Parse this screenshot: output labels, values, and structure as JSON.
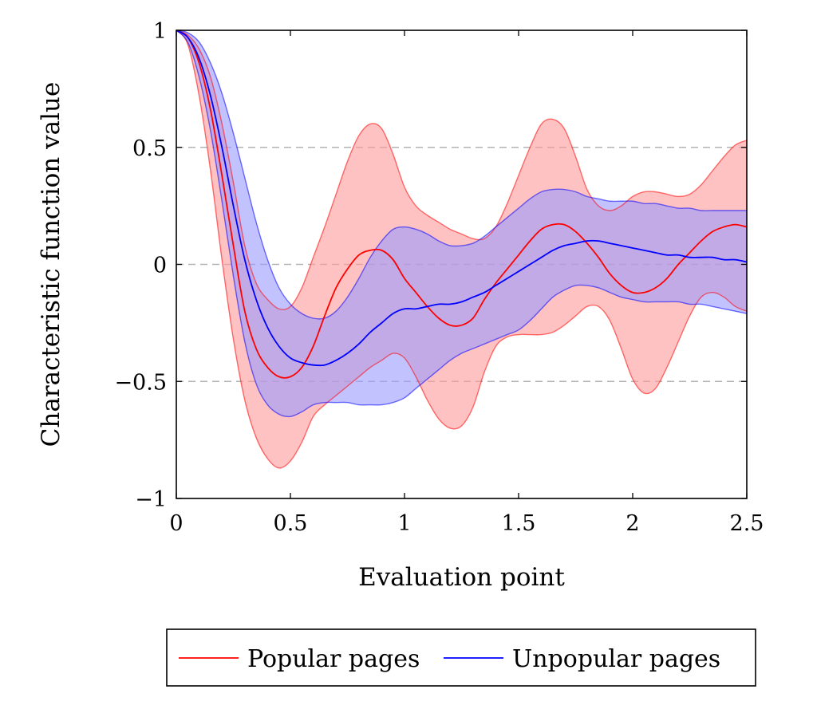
{
  "chart_data": {
    "type": "line",
    "title": "",
    "xlabel": "Evaluation point",
    "ylabel": "Characteristic function value",
    "xlim": [
      0,
      2.5
    ],
    "ylim": [
      -1,
      1
    ],
    "x_ticks": [
      "0",
      "0.5",
      "1",
      "1.5",
      "2",
      "2.5"
    ],
    "x_tick_values": [
      0,
      0.5,
      1,
      1.5,
      2,
      2.5
    ],
    "y_ticks": [
      "1",
      "0.5",
      "0",
      "−0.5",
      "−1"
    ],
    "y_tick_values": [
      1,
      0.5,
      0,
      -0.5,
      -1
    ],
    "grid": "horizontal dashed at 0.5, 0, -0.5",
    "legend": {
      "placement": "bottom",
      "entries": [
        "Popular pages",
        "Unpopular pages"
      ]
    },
    "series": [
      {
        "name": "Popular pages",
        "color": "#ff0000",
        "band_color": "#ff9999",
        "x": [
          0,
          0.05,
          0.1,
          0.15,
          0.2,
          0.25,
          0.3,
          0.35,
          0.4,
          0.45,
          0.5,
          0.55,
          0.6,
          0.65,
          0.7,
          0.75,
          0.8,
          0.85,
          0.9,
          0.95,
          1.0,
          1.05,
          1.1,
          1.15,
          1.2,
          1.25,
          1.3,
          1.35,
          1.4,
          1.45,
          1.5,
          1.55,
          1.6,
          1.65,
          1.7,
          1.75,
          1.8,
          1.85,
          1.9,
          1.95,
          2.0,
          2.05,
          2.1,
          2.15,
          2.2,
          2.25,
          2.3,
          2.35,
          2.4,
          2.45,
          2.5
        ],
        "mean": [
          1.0,
          0.97,
          0.86,
          0.66,
          0.38,
          0.08,
          -0.2,
          -0.36,
          -0.44,
          -0.48,
          -0.48,
          -0.44,
          -0.35,
          -0.22,
          -0.1,
          -0.02,
          0.04,
          0.06,
          0.06,
          0.02,
          -0.06,
          -0.12,
          -0.18,
          -0.23,
          -0.26,
          -0.26,
          -0.23,
          -0.15,
          -0.08,
          -0.02,
          0.04,
          0.1,
          0.15,
          0.17,
          0.17,
          0.14,
          0.09,
          0.03,
          -0.04,
          -0.09,
          -0.12,
          -0.12,
          -0.1,
          -0.06,
          0.0,
          0.05,
          0.1,
          0.14,
          0.16,
          0.17,
          0.16
        ],
        "upper": [
          1.0,
          0.98,
          0.92,
          0.8,
          0.6,
          0.35,
          0.08,
          -0.08,
          -0.15,
          -0.19,
          -0.18,
          -0.1,
          0.03,
          0.16,
          0.3,
          0.44,
          0.55,
          0.6,
          0.58,
          0.47,
          0.33,
          0.25,
          0.21,
          0.18,
          0.15,
          0.13,
          0.11,
          0.11,
          0.16,
          0.26,
          0.38,
          0.5,
          0.6,
          0.62,
          0.58,
          0.46,
          0.32,
          0.25,
          0.23,
          0.25,
          0.29,
          0.31,
          0.31,
          0.3,
          0.29,
          0.3,
          0.34,
          0.4,
          0.46,
          0.51,
          0.53
        ],
        "lower": [
          1.0,
          0.94,
          0.72,
          0.4,
          0.02,
          -0.32,
          -0.58,
          -0.74,
          -0.83,
          -0.87,
          -0.84,
          -0.76,
          -0.65,
          -0.6,
          -0.56,
          -0.52,
          -0.48,
          -0.44,
          -0.41,
          -0.38,
          -0.4,
          -0.48,
          -0.58,
          -0.66,
          -0.7,
          -0.69,
          -0.61,
          -0.46,
          -0.35,
          -0.31,
          -0.3,
          -0.3,
          -0.3,
          -0.29,
          -0.26,
          -0.22,
          -0.18,
          -0.18,
          -0.24,
          -0.36,
          -0.49,
          -0.55,
          -0.53,
          -0.44,
          -0.33,
          -0.22,
          -0.14,
          -0.12,
          -0.14,
          -0.18,
          -0.2
        ]
      },
      {
        "name": "Unpopular pages",
        "color": "#0000ff",
        "band_color": "#9999ff",
        "x": [
          0,
          0.05,
          0.1,
          0.15,
          0.2,
          0.25,
          0.3,
          0.35,
          0.4,
          0.45,
          0.5,
          0.55,
          0.6,
          0.65,
          0.7,
          0.75,
          0.8,
          0.85,
          0.9,
          0.95,
          1.0,
          1.05,
          1.1,
          1.15,
          1.2,
          1.25,
          1.3,
          1.35,
          1.4,
          1.45,
          1.5,
          1.55,
          1.6,
          1.65,
          1.7,
          1.75,
          1.8,
          1.85,
          1.9,
          1.95,
          2.0,
          2.05,
          2.1,
          2.15,
          2.2,
          2.25,
          2.3,
          2.35,
          2.4,
          2.45,
          2.5
        ],
        "mean": [
          1.0,
          0.97,
          0.88,
          0.72,
          0.5,
          0.25,
          0.02,
          -0.15,
          -0.27,
          -0.35,
          -0.4,
          -0.42,
          -0.43,
          -0.43,
          -0.41,
          -0.38,
          -0.34,
          -0.29,
          -0.25,
          -0.21,
          -0.19,
          -0.19,
          -0.18,
          -0.17,
          -0.17,
          -0.16,
          -0.14,
          -0.12,
          -0.09,
          -0.06,
          -0.03,
          0.0,
          0.03,
          0.06,
          0.08,
          0.09,
          0.1,
          0.1,
          0.09,
          0.08,
          0.07,
          0.06,
          0.05,
          0.04,
          0.04,
          0.03,
          0.03,
          0.03,
          0.02,
          0.02,
          0.01
        ],
        "upper": [
          1.0,
          0.99,
          0.95,
          0.86,
          0.73,
          0.56,
          0.37,
          0.18,
          0.02,
          -0.1,
          -0.17,
          -0.21,
          -0.23,
          -0.23,
          -0.2,
          -0.14,
          -0.06,
          0.03,
          0.1,
          0.15,
          0.16,
          0.15,
          0.13,
          0.1,
          0.08,
          0.08,
          0.09,
          0.12,
          0.16,
          0.2,
          0.24,
          0.28,
          0.31,
          0.32,
          0.32,
          0.31,
          0.29,
          0.28,
          0.27,
          0.27,
          0.27,
          0.26,
          0.26,
          0.25,
          0.24,
          0.24,
          0.23,
          0.23,
          0.23,
          0.23,
          0.23
        ],
        "lower": [
          1.0,
          0.95,
          0.8,
          0.57,
          0.27,
          -0.05,
          -0.33,
          -0.51,
          -0.6,
          -0.64,
          -0.65,
          -0.63,
          -0.6,
          -0.59,
          -0.59,
          -0.59,
          -0.6,
          -0.6,
          -0.6,
          -0.59,
          -0.57,
          -0.53,
          -0.49,
          -0.45,
          -0.41,
          -0.38,
          -0.36,
          -0.34,
          -0.32,
          -0.3,
          -0.28,
          -0.24,
          -0.19,
          -0.14,
          -0.11,
          -0.09,
          -0.09,
          -0.1,
          -0.12,
          -0.14,
          -0.15,
          -0.16,
          -0.16,
          -0.16,
          -0.16,
          -0.17,
          -0.17,
          -0.18,
          -0.19,
          -0.2,
          -0.21
        ]
      }
    ]
  }
}
